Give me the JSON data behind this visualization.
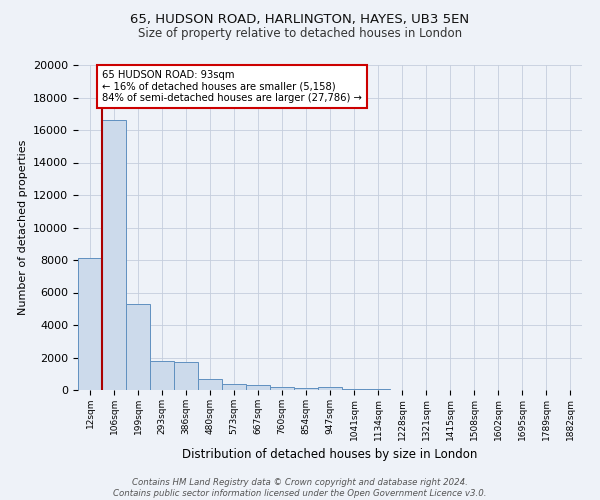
{
  "title_line1": "65, HUDSON ROAD, HARLINGTON, HAYES, UB3 5EN",
  "title_line2": "Size of property relative to detached houses in London",
  "xlabel": "Distribution of detached houses by size in London",
  "ylabel": "Number of detached properties",
  "footnote": "Contains HM Land Registry data © Crown copyright and database right 2024.\nContains public sector information licensed under the Open Government Licence v3.0.",
  "bar_labels": [
    "12sqm",
    "106sqm",
    "199sqm",
    "293sqm",
    "386sqm",
    "480sqm",
    "573sqm",
    "667sqm",
    "760sqm",
    "854sqm",
    "947sqm",
    "1041sqm",
    "1134sqm",
    "1228sqm",
    "1321sqm",
    "1415sqm",
    "1508sqm",
    "1602sqm",
    "1695sqm",
    "1789sqm",
    "1882sqm"
  ],
  "bar_heights": [
    8100,
    16600,
    5300,
    1800,
    1750,
    700,
    350,
    300,
    200,
    150,
    180,
    70,
    45,
    28,
    18,
    12,
    8,
    6,
    4,
    3,
    2
  ],
  "bar_color": "#ccdaeb",
  "bar_edge_color": "#6090c0",
  "ylim": [
    0,
    20000
  ],
  "annotation_text": "65 HUDSON ROAD: 93sqm\n← 16% of detached houses are smaller (5,158)\n84% of semi-detached houses are larger (27,786) →",
  "annotation_box_color": "#ffffff",
  "annotation_box_edge_color": "#cc0000",
  "vline_color": "#aa0000",
  "background_color": "#eef2f8",
  "grid_color": "#c5cedd"
}
